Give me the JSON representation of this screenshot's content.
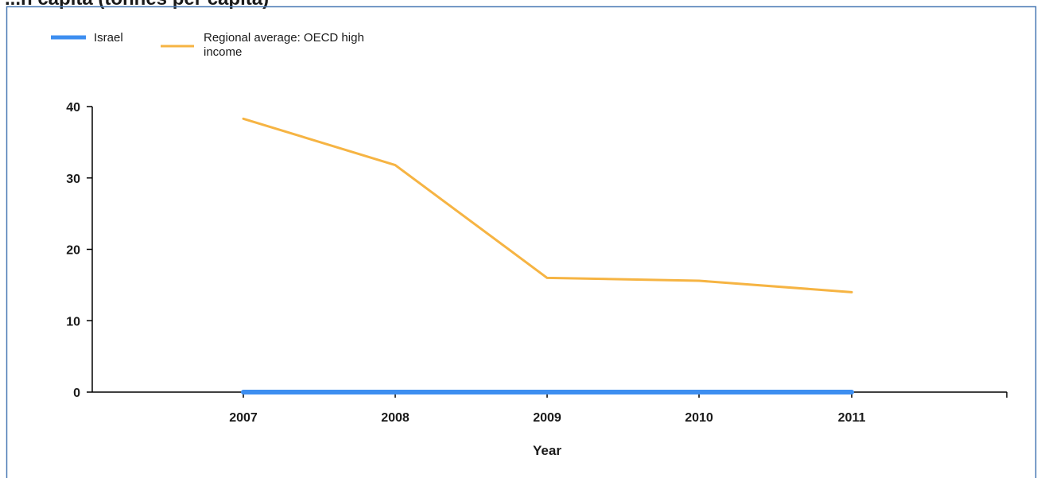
{
  "page": {
    "title": "...h capita (tonnes per capita)"
  },
  "colors": {
    "border": "#4a7ab5",
    "axis": "#000000",
    "israel": "#3d8ef0",
    "oecd": "#f6b443"
  },
  "chart_data": {
    "type": "line",
    "xlabel": "Year",
    "ylabel": "",
    "x": [
      2007,
      2008,
      2009,
      2010,
      2011
    ],
    "x_tick_labels": [
      "2007",
      "2008",
      "2009",
      "2010",
      "2011"
    ],
    "ylim": [
      0,
      40
    ],
    "y_ticks": [
      0,
      10,
      20,
      30,
      40
    ],
    "y_tick_labels": [
      "0",
      "10",
      "20",
      "30",
      "40"
    ],
    "grid": false,
    "legend_position": "top-left",
    "series": [
      {
        "name": "Israel",
        "values": [
          0,
          0,
          0,
          0,
          0
        ],
        "color": "#3d8ef0"
      },
      {
        "name": "Regional average: OECD high income",
        "values": [
          38.3,
          31.8,
          16.0,
          15.6,
          14.0
        ],
        "color": "#f6b443"
      }
    ],
    "legend": {
      "israel_label": "Israel",
      "oecd_label_line1": "Regional average: OECD high",
      "oecd_label_line2": "income"
    }
  }
}
